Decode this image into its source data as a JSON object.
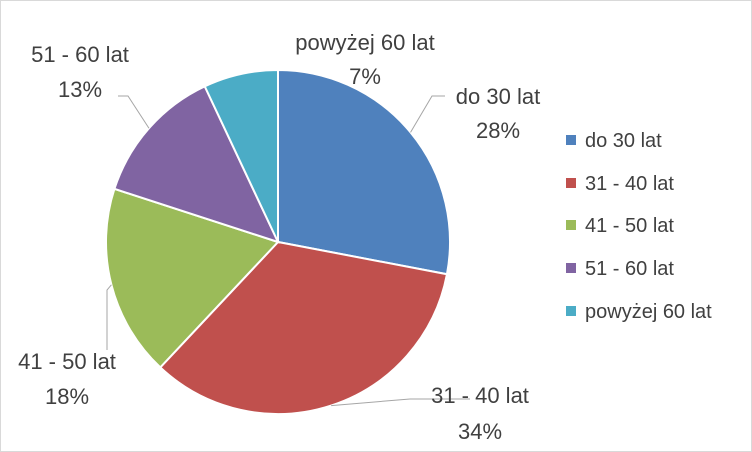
{
  "chart_data": {
    "type": "pie",
    "title": "",
    "legend_position": "right",
    "slices": [
      {
        "label": "do 30 lat",
        "value": 28,
        "pct_label": "28%",
        "color": "#4f81bd"
      },
      {
        "label": "31 - 40 lat",
        "value": 34,
        "pct_label": "34%",
        "color": "#c0504d"
      },
      {
        "label": "41 - 50 lat",
        "value": 18,
        "pct_label": "18%",
        "color": "#9bbb59"
      },
      {
        "label": "51 - 60 lat",
        "value": 13,
        "pct_label": "13%",
        "color": "#8064a2"
      },
      {
        "label": "powyżej 60 lat",
        "value": 7,
        "pct_label": "7%",
        "color": "#4bacc6"
      }
    ]
  }
}
